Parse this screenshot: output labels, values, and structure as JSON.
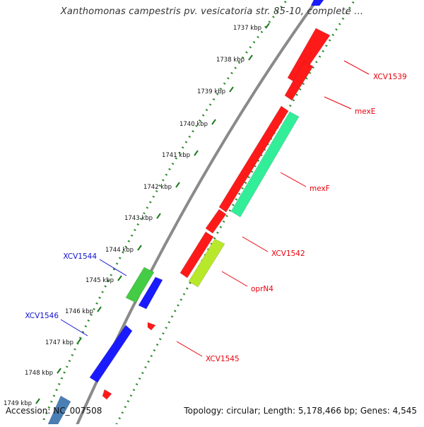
{
  "title": "Xanthomonas campestris pv. vesicatoria str. 85-10, complete ...",
  "footer": {
    "accession": "Accession: NC_007508",
    "summary": "Topology: circular; Length: 5,178,466 bp; Genes: 4,545"
  },
  "ticks": [
    {
      "label": "1737 kbp"
    },
    {
      "label": "1738 kbp"
    },
    {
      "label": "1739 kbp"
    },
    {
      "label": "1740 kbp"
    },
    {
      "label": "1741 kbp"
    },
    {
      "label": "1742 kbp"
    },
    {
      "label": "1743 kbp"
    },
    {
      "label": "1744 kbp"
    },
    {
      "label": "1745 kbp"
    },
    {
      "label": "1746 kbp"
    },
    {
      "label": "1747 kbp"
    },
    {
      "label": "1748 kbp"
    },
    {
      "label": "1749 kbp"
    }
  ],
  "gene_labels": [
    {
      "text": "XCV1539",
      "color": "#e8000b",
      "strand": "forward"
    },
    {
      "text": "mexE",
      "color": "#e8000b",
      "strand": "forward"
    },
    {
      "text": "mexF",
      "color": "#e8000b",
      "strand": "forward"
    },
    {
      "text": "XCV1542",
      "color": "#e8000b",
      "strand": "forward"
    },
    {
      "text": "oprN4",
      "color": "#e8000b",
      "strand": "forward"
    },
    {
      "text": "XCV1545",
      "color": "#e8000b",
      "strand": "forward"
    },
    {
      "text": "XCV1544",
      "color": "#1010d0",
      "strand": "reverse"
    },
    {
      "text": "XCV1546",
      "color": "#1010d0",
      "strand": "reverse"
    }
  ],
  "colors": {
    "forward_gene": "#ff1a1a",
    "reverse_gene": "#1a1aff",
    "mexF_companion": "#33ee99",
    "oprN4_companion": "#b8e82a",
    "xcv1544_companion": "#44cc44",
    "backbone": "#8a8a8a",
    "tick_dots": "#2e8b2e"
  }
}
